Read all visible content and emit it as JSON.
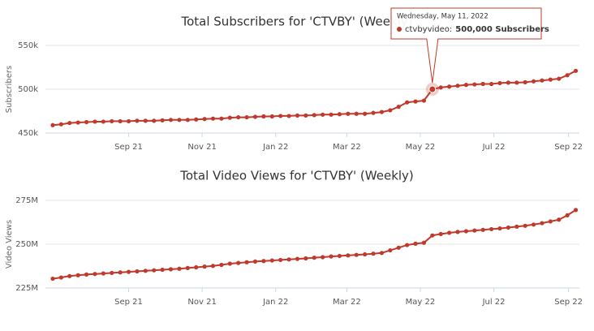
{
  "chart_data": [
    {
      "type": "line",
      "title": "Total Subscribers for 'CTVBY' (Weekly)",
      "y_label": "Subscribers",
      "color": "#c0392b",
      "grid": true,
      "x": [
        "2021-06-30",
        "2021-07-07",
        "2021-07-14",
        "2021-07-21",
        "2021-07-28",
        "2021-08-04",
        "2021-08-11",
        "2021-08-18",
        "2021-08-25",
        "2021-09-01",
        "2021-09-08",
        "2021-09-15",
        "2021-09-22",
        "2021-09-29",
        "2021-10-06",
        "2021-10-13",
        "2021-10-20",
        "2021-10-27",
        "2021-11-03",
        "2021-11-10",
        "2021-11-17",
        "2021-11-24",
        "2021-12-01",
        "2021-12-08",
        "2021-12-15",
        "2021-12-22",
        "2021-12-29",
        "2022-01-05",
        "2022-01-12",
        "2022-01-19",
        "2022-01-26",
        "2022-02-02",
        "2022-02-09",
        "2022-02-16",
        "2022-02-23",
        "2022-03-02",
        "2022-03-09",
        "2022-03-16",
        "2022-03-23",
        "2022-03-30",
        "2022-04-06",
        "2022-04-13",
        "2022-04-20",
        "2022-04-27",
        "2022-05-04",
        "2022-05-11",
        "2022-05-18",
        "2022-05-25",
        "2022-06-01",
        "2022-06-08",
        "2022-06-15",
        "2022-06-22",
        "2022-06-29",
        "2022-07-06",
        "2022-07-13",
        "2022-07-20",
        "2022-07-27",
        "2022-08-03",
        "2022-08-10",
        "2022-08-17",
        "2022-08-24",
        "2022-08-31",
        "2022-09-07"
      ],
      "values": [
        459000,
        460000,
        461500,
        462000,
        462500,
        463000,
        463000,
        463500,
        463500,
        463500,
        464000,
        464000,
        464000,
        464500,
        465000,
        465000,
        465000,
        465500,
        466000,
        466500,
        466500,
        467500,
        468000,
        468000,
        468500,
        469000,
        469000,
        469500,
        469500,
        470000,
        470000,
        470500,
        471000,
        471000,
        471500,
        472000,
        472000,
        472000,
        473000,
        474000,
        476000,
        480000,
        485000,
        486000,
        487000,
        500000,
        502000,
        503000,
        504000,
        505000,
        505500,
        506000,
        506000,
        507000,
        507500,
        507500,
        508000,
        509000,
        510000,
        511000,
        512000,
        516000,
        521000
      ],
      "xlim": [
        "2021-06-28",
        "2022-09-10"
      ],
      "xticks": [
        {
          "value": "2021-09-01",
          "label": "Sep 21"
        },
        {
          "value": "2021-11-01",
          "label": "Nov 21"
        },
        {
          "value": "2022-01-01",
          "label": "Jan 22"
        },
        {
          "value": "2022-03-01",
          "label": "Mar 22"
        },
        {
          "value": "2022-05-01",
          "label": "May 22"
        },
        {
          "value": "2022-07-01",
          "label": "Jul 22"
        },
        {
          "value": "2022-09-01",
          "label": "Sep 22"
        }
      ],
      "ylim": [
        450000,
        550000
      ],
      "yticks": [
        {
          "value": 450000,
          "label": "450k"
        },
        {
          "value": 500000,
          "label": "500k"
        },
        {
          "value": 550000,
          "label": "550k"
        }
      ],
      "tooltip": {
        "index": 45,
        "date": "Wednesday, May 11, 2022",
        "series_label": "ctvbyvideo:",
        "value_label": "500,000 Subscribers"
      }
    },
    {
      "type": "line",
      "title": "Total Video Views for 'CTVBY' (Weekly)",
      "y_label": "Video Views",
      "color": "#c0392b",
      "grid": true,
      "x": [
        "2021-06-30",
        "2021-07-07",
        "2021-07-14",
        "2021-07-21",
        "2021-07-28",
        "2021-08-04",
        "2021-08-11",
        "2021-08-18",
        "2021-08-25",
        "2021-09-01",
        "2021-09-08",
        "2021-09-15",
        "2021-09-22",
        "2021-09-29",
        "2021-10-06",
        "2021-10-13",
        "2021-10-20",
        "2021-10-27",
        "2021-11-03",
        "2021-11-10",
        "2021-11-17",
        "2021-11-24",
        "2021-12-01",
        "2021-12-08",
        "2021-12-15",
        "2021-12-22",
        "2021-12-29",
        "2022-01-05",
        "2022-01-12",
        "2022-01-19",
        "2022-01-26",
        "2022-02-02",
        "2022-02-09",
        "2022-02-16",
        "2022-02-23",
        "2022-03-02",
        "2022-03-09",
        "2022-03-16",
        "2022-03-23",
        "2022-03-30",
        "2022-04-06",
        "2022-04-13",
        "2022-04-20",
        "2022-04-27",
        "2022-05-04",
        "2022-05-11",
        "2022-05-18",
        "2022-05-25",
        "2022-06-01",
        "2022-06-08",
        "2022-06-15",
        "2022-06-22",
        "2022-06-29",
        "2022-07-06",
        "2022-07-13",
        "2022-07-20",
        "2022-07-27",
        "2022-08-03",
        "2022-08-10",
        "2022-08-17",
        "2022-08-24",
        "2022-08-31",
        "2022-09-07"
      ],
      "values": [
        230300000,
        231000000,
        231800000,
        232300000,
        232700000,
        233000000,
        233300000,
        233600000,
        233900000,
        234200000,
        234500000,
        234800000,
        235100000,
        235400000,
        235700000,
        236000000,
        236400000,
        236800000,
        237200000,
        237600000,
        238200000,
        238900000,
        239300000,
        239700000,
        240100000,
        240400000,
        240700000,
        241000000,
        241300000,
        241600000,
        241900000,
        242300000,
        242600000,
        243000000,
        243300000,
        243600000,
        243900000,
        244200000,
        244600000,
        245000000,
        246500000,
        248000000,
        249500000,
        250300000,
        250800000,
        255000000,
        255800000,
        256500000,
        257000000,
        257400000,
        257800000,
        258200000,
        258600000,
        259000000,
        259500000,
        260000000,
        260500000,
        261200000,
        262000000,
        263000000,
        264000000,
        266500000,
        269500000
      ],
      "xlim": [
        "2021-06-28",
        "2022-09-10"
      ],
      "xticks": [
        {
          "value": "2021-09-01",
          "label": "Sep 21"
        },
        {
          "value": "2021-11-01",
          "label": "Nov 21"
        },
        {
          "value": "2022-01-01",
          "label": "Jan 22"
        },
        {
          "value": "2022-03-01",
          "label": "Mar 22"
        },
        {
          "value": "2022-05-01",
          "label": "May 22"
        },
        {
          "value": "2022-07-01",
          "label": "Jul 22"
        },
        {
          "value": "2022-09-01",
          "label": "Sep 22"
        }
      ],
      "ylim": [
        225000000,
        275000000
      ],
      "yticks": [
        {
          "value": 225000000,
          "label": "225M"
        },
        {
          "value": 250000000,
          "label": "250M"
        },
        {
          "value": 275000000,
          "label": "275M"
        }
      ]
    }
  ]
}
